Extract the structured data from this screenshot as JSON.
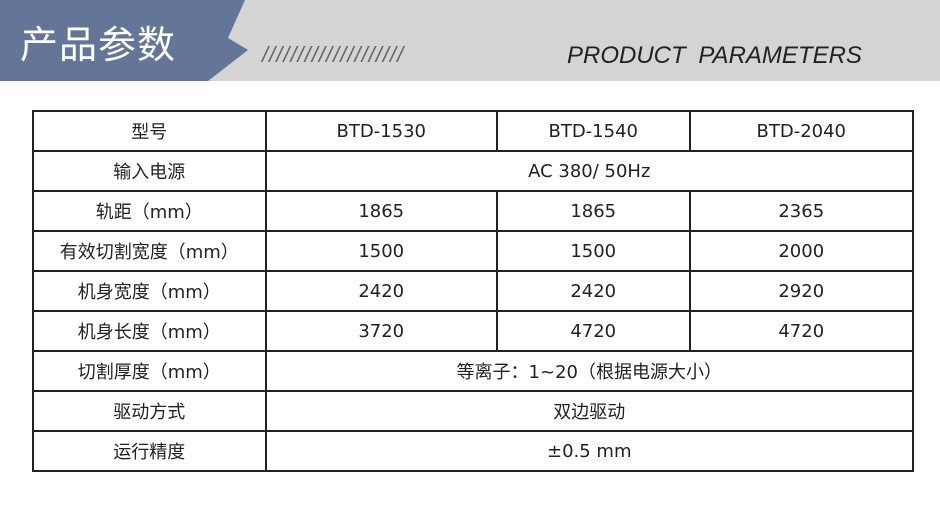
{
  "header": {
    "title_cn": "产品参数",
    "decoration": "////////////////////",
    "title_en": "PRODUCT  PARAMETERS",
    "colors": {
      "band": "#d4d4d4",
      "accent": "#647697"
    }
  },
  "table": {
    "header": [
      "型号",
      "BTD-1530",
      "BTD-1540",
      "BTD-2040"
    ],
    "rows": [
      {
        "label": "输入电源",
        "merged": "AC 380/ 50Hz"
      },
      {
        "label": "轨距（mm）",
        "values": [
          "1865",
          "1865",
          "2365"
        ]
      },
      {
        "label": "有效切割宽度（mm）",
        "values": [
          "1500",
          "1500",
          "2000"
        ]
      },
      {
        "label": "机身宽度（mm）",
        "values": [
          "2420",
          "2420",
          "2920"
        ]
      },
      {
        "label": "机身长度（mm）",
        "values": [
          "3720",
          "4720",
          "4720"
        ]
      },
      {
        "label": "切割厚度（mm）",
        "merged": "等离子：1~20（根据电源大小）"
      },
      {
        "label": "驱动方式",
        "merged": "双边驱动"
      },
      {
        "label": "运行精度",
        "merged": "±0.5 mm"
      }
    ]
  }
}
